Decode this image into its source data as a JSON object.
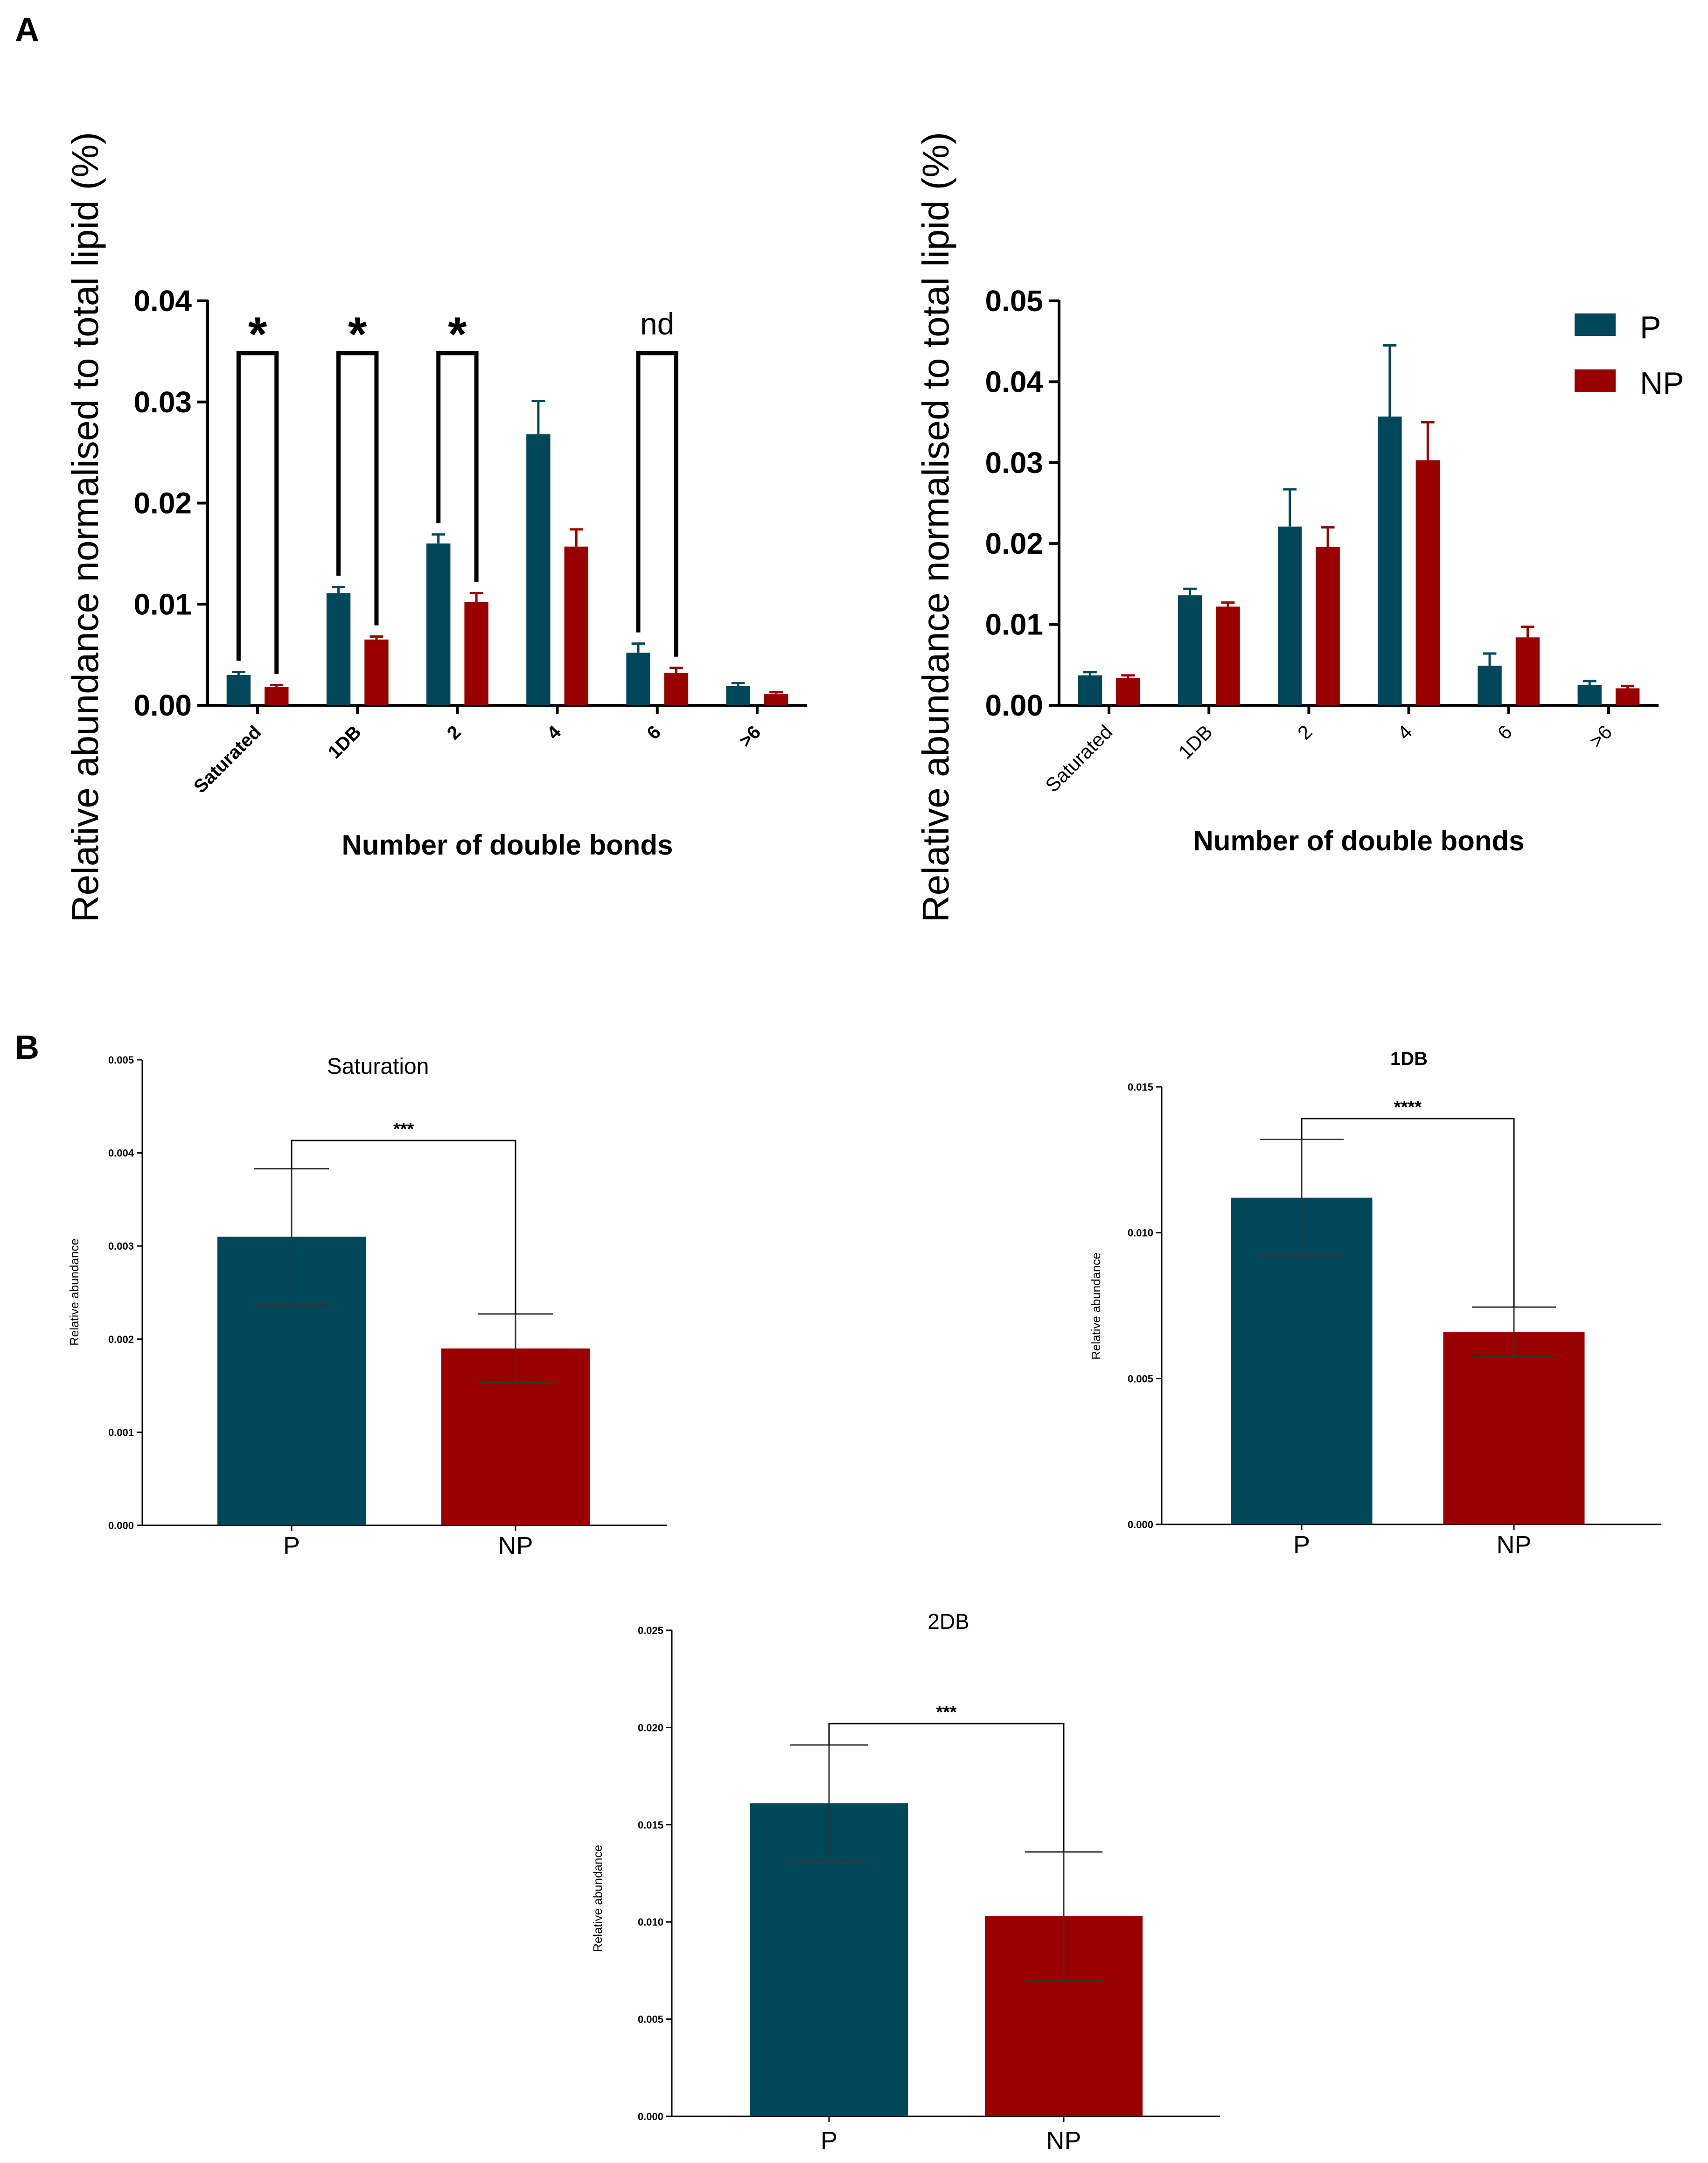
{
  "colors": {
    "P": "#00475a",
    "NP": "#990000",
    "axis": "#000000",
    "bracket": "#000000"
  },
  "chart_data": [
    {
      "id": "A_left",
      "panel_label": "A",
      "type": "bar",
      "title": "",
      "xlabel": "Number of double bonds",
      "ylabel": "Relative abundance normalised to total lipid (%)",
      "ylim": [
        0,
        0.04
      ],
      "yticks": [
        "0.00",
        "0.01",
        "0.02",
        "0.03",
        "0.04"
      ],
      "categories": [
        "Saturated",
        "1DB",
        "2",
        "4",
        "6",
        ">6"
      ],
      "series": [
        {
          "name": "P",
          "values": [
            0.003,
            0.0111,
            0.016,
            0.0268,
            0.0052,
            0.0019
          ],
          "errors": [
            0.0003,
            0.0006,
            0.0009,
            0.0033,
            0.0009,
            0.0003
          ]
        },
        {
          "name": "NP",
          "values": [
            0.0018,
            0.0065,
            0.0102,
            0.0157,
            0.0032,
            0.0011
          ],
          "errors": [
            0.0002,
            0.0003,
            0.0009,
            0.0017,
            0.0005,
            0.0002
          ]
        }
      ],
      "annotations": [
        {
          "category_index": 0,
          "label": "*"
        },
        {
          "category_index": 1,
          "label": "*"
        },
        {
          "category_index": 2,
          "label": "*"
        },
        {
          "category_index": 4,
          "label": "nd"
        }
      ],
      "legend": null
    },
    {
      "id": "A_right",
      "type": "bar",
      "title": "",
      "xlabel": "Number of double bonds",
      "ylabel": "Relative abundance normalised to total lipid (%)",
      "ylim": [
        0,
        0.05
      ],
      "yticks": [
        "0.00",
        "0.01",
        "0.02",
        "0.03",
        "0.04",
        "0.05"
      ],
      "categories": [
        "Saturated",
        "1DB",
        "2",
        "4",
        "6",
        ">6"
      ],
      "series": [
        {
          "name": "P",
          "values": [
            0.0037,
            0.0136,
            0.0221,
            0.0357,
            0.0049,
            0.0025
          ],
          "errors": [
            0.0004,
            0.0008,
            0.0046,
            0.0088,
            0.0015,
            0.0005
          ]
        },
        {
          "name": "NP",
          "values": [
            0.0034,
            0.0122,
            0.0196,
            0.0303,
            0.0084,
            0.0021
          ],
          "errors": [
            0.0003,
            0.0005,
            0.0024,
            0.0047,
            0.0013,
            0.0003
          ]
        }
      ],
      "legend": {
        "position": "top-right",
        "entries": [
          "P",
          "NP"
        ]
      }
    },
    {
      "id": "B_saturation",
      "panel_label": "B",
      "type": "bar",
      "title": "Saturation",
      "ylabel": "Relative abundance",
      "ylim": [
        0,
        0.005
      ],
      "yticks": [
        "0.000",
        "0.001",
        "0.002",
        "0.003",
        "0.004",
        "0.005"
      ],
      "categories": [
        "P",
        "NP"
      ],
      "values": [
        0.0031,
        0.0019
      ],
      "errors": [
        0.00073,
        0.00037
      ],
      "significance": "***"
    },
    {
      "id": "B_1DB",
      "type": "bar",
      "title": "1DB",
      "ylabel": "Relative abundance",
      "ylim": [
        0,
        0.015
      ],
      "yticks": [
        "0.000",
        "0.005",
        "0.010",
        "0.015"
      ],
      "categories": [
        "P",
        "NP"
      ],
      "values": [
        0.0112,
        0.0066
      ],
      "errors": [
        0.002,
        0.00085
      ],
      "significance": "****"
    },
    {
      "id": "B_2DB",
      "type": "bar",
      "title": "2DB",
      "ylabel": "Relative abundance",
      "ylim": [
        0,
        0.025
      ],
      "yticks": [
        "0.000",
        "0.005",
        "0.010",
        "0.015",
        "0.020",
        "0.025"
      ],
      "categories": [
        "P",
        "NP"
      ],
      "values": [
        0.0161,
        0.0103
      ],
      "errors": [
        0.003,
        0.0033
      ],
      "significance": "***"
    }
  ]
}
